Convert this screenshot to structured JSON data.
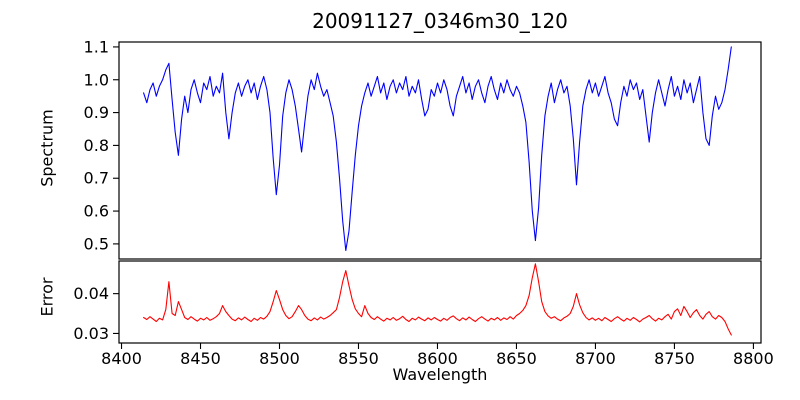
{
  "chart_data": {
    "type": "line",
    "title": "20091127_0346m30_120",
    "xlabel": "Wavelength",
    "legend": "none",
    "grid": false,
    "x_start": 8414,
    "x_step": 2,
    "xlim": [
      8398.4,
      8804.8
    ],
    "x_tick_values": [
      8400,
      8450,
      8500,
      8550,
      8600,
      8650,
      8700,
      8750,
      8800
    ],
    "x_tick_labels": [
      "8400",
      "8450",
      "8500",
      "8550",
      "8600",
      "8650",
      "8700",
      "8750",
      "8800"
    ],
    "panels": [
      {
        "name": "spectrum",
        "ylabel": "Spectrum",
        "color": "#0000ff",
        "ylim": [
          0.454,
          1.115
        ],
        "y_tick_values": [
          0.5,
          0.6,
          0.7,
          0.8,
          0.9,
          1.0,
          1.1
        ],
        "y_tick_labels": [
          "0.5",
          "0.6",
          "0.7",
          "0.8",
          "0.9",
          "1.0",
          "1.1"
        ],
        "notable_absorption_lines": [
          {
            "wavelength": 8435,
            "depth": 0.77
          },
          {
            "wavelength": 8468,
            "depth": 0.82
          },
          {
            "wavelength": 8498,
            "depth": 0.65
          },
          {
            "wavelength": 8514,
            "depth": 0.78
          },
          {
            "wavelength": 8542,
            "depth": 0.48
          },
          {
            "wavelength": 8662,
            "depth": 0.51
          },
          {
            "wavelength": 8688,
            "depth": 0.68
          },
          {
            "wavelength": 8734,
            "depth": 0.81
          },
          {
            "wavelength": 8772,
            "depth": 0.8
          }
        ],
        "values": [
          0.96,
          0.93,
          0.97,
          0.99,
          0.95,
          0.98,
          1.0,
          1.03,
          1.05,
          0.94,
          0.84,
          0.77,
          0.88,
          0.95,
          0.9,
          0.97,
          1.0,
          0.96,
          0.93,
          0.99,
          0.97,
          1.01,
          0.95,
          0.98,
          0.96,
          1.02,
          0.9,
          0.82,
          0.9,
          0.96,
          0.99,
          0.95,
          0.98,
          1.0,
          0.96,
          0.99,
          0.94,
          0.98,
          1.01,
          0.97,
          0.9,
          0.76,
          0.65,
          0.74,
          0.89,
          0.96,
          1.0,
          0.97,
          0.92,
          0.85,
          0.78,
          0.87,
          0.95,
          1.0,
          0.97,
          1.02,
          0.98,
          0.95,
          0.97,
          0.93,
          0.89,
          0.81,
          0.7,
          0.57,
          0.48,
          0.54,
          0.66,
          0.77,
          0.86,
          0.92,
          0.96,
          0.99,
          0.95,
          0.98,
          1.01,
          0.96,
          0.99,
          0.94,
          0.98,
          1.0,
          0.96,
          0.99,
          0.97,
          1.01,
          0.95,
          0.98,
          0.96,
          1.0,
          0.94,
          0.89,
          0.91,
          0.97,
          0.95,
          0.99,
          0.96,
          1.0,
          0.97,
          0.92,
          0.89,
          0.95,
          0.98,
          1.01,
          0.96,
          0.99,
          0.94,
          0.98,
          1.0,
          0.96,
          0.93,
          0.98,
          1.01,
          0.97,
          0.94,
          0.99,
          0.96,
          1.0,
          0.97,
          0.95,
          0.98,
          0.96,
          0.92,
          0.87,
          0.75,
          0.6,
          0.51,
          0.61,
          0.77,
          0.89,
          0.95,
          0.99,
          0.93,
          0.97,
          1.0,
          0.96,
          0.98,
          0.92,
          0.82,
          0.68,
          0.81,
          0.92,
          0.97,
          1.0,
          0.96,
          0.99,
          0.95,
          0.98,
          1.01,
          0.96,
          0.93,
          0.88,
          0.86,
          0.93,
          0.98,
          0.95,
          1.0,
          0.97,
          0.99,
          0.94,
          0.97,
          0.89,
          0.81,
          0.9,
          0.96,
          1.0,
          0.96,
          0.92,
          0.97,
          1.01,
          0.95,
          0.98,
          0.94,
          1.0,
          0.96,
          0.99,
          0.93,
          0.97,
          1.01,
          0.9,
          0.82,
          0.8,
          0.89,
          0.95,
          0.91,
          0.93,
          0.97,
          1.03,
          1.1
        ]
      },
      {
        "name": "error",
        "ylabel": "Error",
        "color": "#ff0000",
        "ylim": [
          0.0276,
          0.0482
        ],
        "y_tick_values": [
          0.03,
          0.04
        ],
        "y_tick_labels": [
          "0.03",
          "0.04"
        ],
        "notable_peaks": [
          {
            "wavelength": 8430,
            "value": 0.043
          },
          {
            "wavelength": 8498,
            "value": 0.041
          },
          {
            "wavelength": 8542,
            "value": 0.046
          },
          {
            "wavelength": 8662,
            "value": 0.0475
          },
          {
            "wavelength": 8688,
            "value": 0.04
          }
        ],
        "values": [
          0.034,
          0.0335,
          0.0342,
          0.0336,
          0.033,
          0.0338,
          0.0334,
          0.036,
          0.043,
          0.035,
          0.0345,
          0.038,
          0.036,
          0.034,
          0.0335,
          0.0342,
          0.0336,
          0.0331,
          0.0338,
          0.0334,
          0.034,
          0.0333,
          0.0337,
          0.0342,
          0.035,
          0.037,
          0.0355,
          0.0345,
          0.0336,
          0.0332,
          0.0339,
          0.0334,
          0.0341,
          0.0335,
          0.033,
          0.0338,
          0.0333,
          0.034,
          0.0336,
          0.0343,
          0.0355,
          0.038,
          0.0408,
          0.0385,
          0.036,
          0.0345,
          0.0337,
          0.0342,
          0.0355,
          0.037,
          0.036,
          0.0345,
          0.0336,
          0.0332,
          0.0339,
          0.0334,
          0.0341,
          0.0336,
          0.034,
          0.0345,
          0.0352,
          0.036,
          0.039,
          0.043,
          0.0458,
          0.042,
          0.0385,
          0.0362,
          0.035,
          0.0342,
          0.037,
          0.035,
          0.034,
          0.0335,
          0.0342,
          0.0336,
          0.0331,
          0.0338,
          0.0334,
          0.034,
          0.0333,
          0.0337,
          0.0343,
          0.0335,
          0.033,
          0.0338,
          0.0334,
          0.0341,
          0.0336,
          0.0332,
          0.0339,
          0.0334,
          0.034,
          0.0335,
          0.0331,
          0.0338,
          0.0333,
          0.034,
          0.0344,
          0.0337,
          0.0332,
          0.0339,
          0.0334,
          0.0341,
          0.0335,
          0.033,
          0.0337,
          0.0342,
          0.0336,
          0.0331,
          0.0338,
          0.0334,
          0.034,
          0.0333,
          0.0339,
          0.0335,
          0.0342,
          0.0336,
          0.0345,
          0.035,
          0.0358,
          0.037,
          0.0395,
          0.044,
          0.0475,
          0.043,
          0.038,
          0.0355,
          0.0344,
          0.0338,
          0.0342,
          0.0336,
          0.0332,
          0.0339,
          0.0343,
          0.035,
          0.0368,
          0.04,
          0.0372,
          0.0352,
          0.034,
          0.0334,
          0.0339,
          0.0333,
          0.0338,
          0.0332,
          0.034,
          0.0335,
          0.033,
          0.0337,
          0.0342,
          0.0336,
          0.0331,
          0.0338,
          0.0333,
          0.034,
          0.0335,
          0.0329,
          0.0336,
          0.034,
          0.0345,
          0.0337,
          0.0331,
          0.0338,
          0.0334,
          0.0342,
          0.0348,
          0.0336,
          0.0355,
          0.0362,
          0.0345,
          0.0368,
          0.0355,
          0.034,
          0.0352,
          0.036,
          0.0345,
          0.0336,
          0.0348,
          0.0355,
          0.0342,
          0.0336,
          0.0345,
          0.034,
          0.033,
          0.0312,
          0.0296
        ]
      }
    ],
    "colors": {
      "spectrum_line": "#0000ff",
      "error_line": "#ff0000",
      "axis": "#000000",
      "background": "#ffffff"
    }
  }
}
